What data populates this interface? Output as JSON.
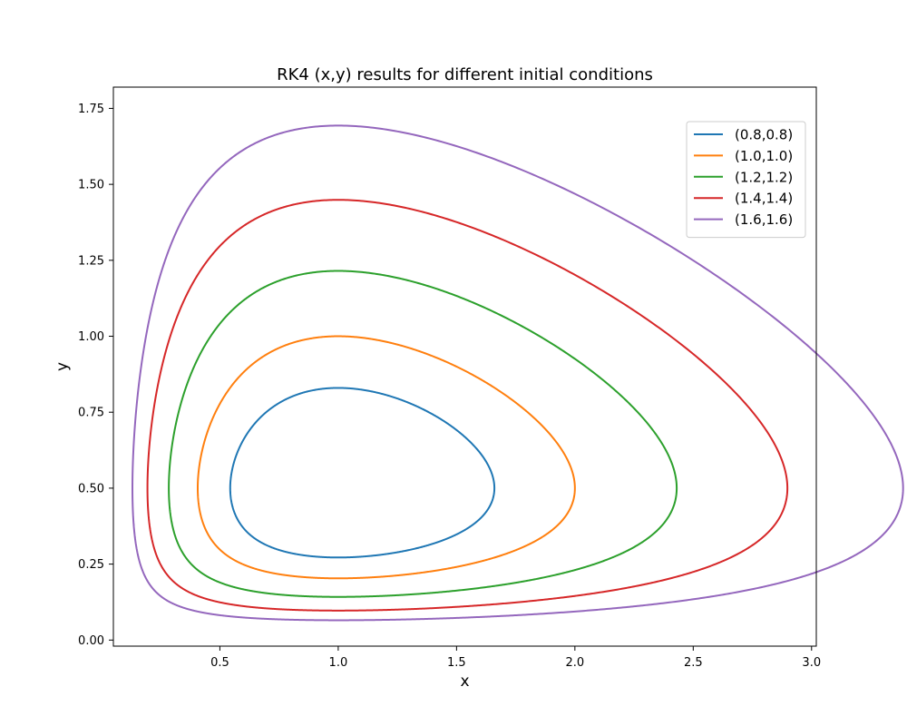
{
  "chart_data": {
    "type": "line",
    "title": "RK4 (x,y) results for different initial conditions",
    "xlabel": "x",
    "ylabel": "y",
    "xlim": [
      0.05,
      3.02
    ],
    "ylim": [
      -0.02,
      1.82
    ],
    "xticks": [
      0.5,
      1.0,
      1.5,
      2.0,
      2.5,
      3.0
    ],
    "xtick_labels": [
      "0.5",
      "1.0",
      "1.5",
      "2.0",
      "2.5",
      "3.0"
    ],
    "yticks": [
      0.0,
      0.25,
      0.5,
      0.75,
      1.0,
      1.25,
      1.5,
      1.75
    ],
    "ytick_labels": [
      "0.00",
      "0.25",
      "0.50",
      "0.75",
      "1.00",
      "1.25",
      "1.50",
      "1.75"
    ],
    "grid": false,
    "legend_position": "top-right",
    "series": [
      {
        "name": "(0.8,0.8)",
        "color": "#1f77b4",
        "x0": 0.8,
        "y0": 0.8
      },
      {
        "name": "(1.0,1.0)",
        "color": "#ff7f0e",
        "x0": 1.0,
        "y0": 1.0
      },
      {
        "name": "(1.2,1.2)",
        "color": "#2ca02c",
        "x0": 1.2,
        "y0": 1.2
      },
      {
        "name": "(1.4,1.4)",
        "color": "#d62728",
        "x0": 1.4,
        "y0": 1.4
      },
      {
        "name": "(1.6,1.6)",
        "color": "#9467bd",
        "x0": 1.6,
        "y0": 1.6
      }
    ]
  }
}
